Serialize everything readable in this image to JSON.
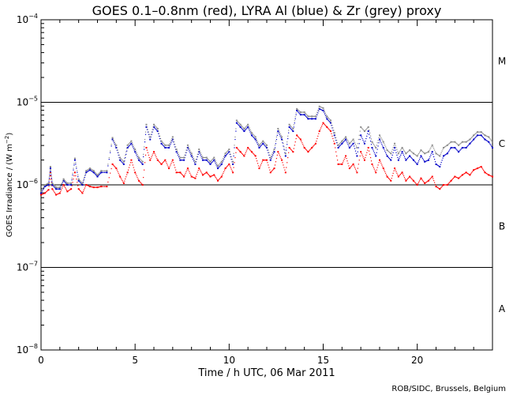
{
  "chart_data": {
    "type": "scatter",
    "title": "GOES 0.1–0.8nm (red), LYRA Al (blue) & Zr (grey) proxy",
    "xlabel": "Time / h UTC, 06 Mar 2011",
    "ylabel": "GOES Irradiance / (W m",
    "ylabel_exp": "−2",
    "ylabel_close": ")",
    "credit": "ROB/SIDC, Brussels, Belgium",
    "xlim": [
      0,
      24
    ],
    "ylim_log10": [
      -8,
      -4
    ],
    "x_ticks": [
      0,
      5,
      10,
      15,
      20
    ],
    "x_tick_labels": [
      "0",
      "5",
      "10",
      "15",
      "20"
    ],
    "y_ticks": [
      {
        "base": "10",
        "exp": "−8",
        "value": -8
      },
      {
        "base": "10",
        "exp": "−7",
        "value": -7
      },
      {
        "base": "10",
        "exp": "−6",
        "value": -6
      },
      {
        "base": "10",
        "exp": "−5",
        "value": -5
      },
      {
        "base": "10",
        "exp": "−4",
        "value": -4
      }
    ],
    "reference_lines_log10": [
      -7,
      -6,
      -5
    ],
    "flare_classes": [
      {
        "label": "A",
        "log10": -7.5
      },
      {
        "label": "B",
        "log10": -6.5
      },
      {
        "label": "C",
        "log10": -5.5
      },
      {
        "label": "M",
        "log10": -4.5
      }
    ],
    "colors": {
      "red": "#ff0000",
      "blue": "#0000c8",
      "grey": "#8c8c8c"
    },
    "series": [
      {
        "name": "GOES 0.1-0.8nm",
        "color": "red",
        "x": [
          0.0,
          0.2,
          0.4,
          0.5,
          0.6,
          0.8,
          1.0,
          1.2,
          1.4,
          1.6,
          1.8,
          2.0,
          2.2,
          2.4,
          2.6,
          2.8,
          3.0,
          3.2,
          3.5,
          3.8,
          4.0,
          4.2,
          4.4,
          4.6,
          4.8,
          5.0,
          5.2,
          5.4,
          5.6,
          5.8,
          6.0,
          6.2,
          6.4,
          6.6,
          6.8,
          7.0,
          7.2,
          7.4,
          7.6,
          7.8,
          8.0,
          8.2,
          8.4,
          8.6,
          8.8,
          9.0,
          9.2,
          9.4,
          9.6,
          9.8,
          10.0,
          10.2,
          10.4,
          10.6,
          10.8,
          11.0,
          11.2,
          11.4,
          11.6,
          11.8,
          12.0,
          12.2,
          12.4,
          12.6,
          12.8,
          13.0,
          13.2,
          13.4,
          13.6,
          13.8,
          14.0,
          14.2,
          14.4,
          14.6,
          14.8,
          15.0,
          15.2,
          15.4,
          15.6,
          15.8,
          16.0,
          16.2,
          16.4,
          16.6,
          16.8,
          17.0,
          17.2,
          17.4,
          17.6,
          17.8,
          18.0,
          18.2,
          18.4,
          18.6,
          18.8,
          19.0,
          19.2,
          19.4,
          19.6,
          19.8,
          20.0,
          20.2,
          20.4,
          20.6,
          20.8,
          21.0,
          21.2,
          21.4,
          21.6,
          21.8,
          22.0,
          22.2,
          22.4,
          22.6,
          22.8,
          23.0,
          23.2,
          23.4,
          23.6,
          23.8,
          24.0
        ],
        "y": [
          -6.12,
          -6.1,
          -6.06,
          -5.85,
          -6.05,
          -6.12,
          -6.1,
          -6.0,
          -6.08,
          -6.05,
          -5.85,
          -6.05,
          -6.1,
          -6.0,
          -6.02,
          -6.03,
          -6.03,
          -6.02,
          -6.02,
          -5.75,
          -5.8,
          -5.9,
          -5.98,
          -5.85,
          -5.7,
          -5.85,
          -5.95,
          -6.0,
          -5.55,
          -5.7,
          -5.6,
          -5.7,
          -5.75,
          -5.7,
          -5.8,
          -5.7,
          -5.85,
          -5.85,
          -5.9,
          -5.8,
          -5.9,
          -5.92,
          -5.8,
          -5.88,
          -5.85,
          -5.9,
          -5.88,
          -5.95,
          -5.9,
          -5.8,
          -5.75,
          -5.85,
          -5.55,
          -5.6,
          -5.65,
          -5.55,
          -5.6,
          -5.65,
          -5.8,
          -5.7,
          -5.7,
          -5.85,
          -5.8,
          -5.6,
          -5.7,
          -5.85,
          -5.55,
          -5.6,
          -5.4,
          -5.45,
          -5.55,
          -5.6,
          -5.55,
          -5.5,
          -5.35,
          -5.25,
          -5.3,
          -5.35,
          -5.5,
          -5.75,
          -5.75,
          -5.65,
          -5.8,
          -5.75,
          -5.85,
          -5.6,
          -5.7,
          -5.55,
          -5.75,
          -5.85,
          -5.7,
          -5.8,
          -5.9,
          -5.95,
          -5.8,
          -5.9,
          -5.85,
          -5.95,
          -5.9,
          -5.95,
          -6.0,
          -5.92,
          -5.98,
          -5.95,
          -5.9,
          -6.02,
          -6.05,
          -6.0,
          -6.0,
          -5.95,
          -5.9,
          -5.92,
          -5.88,
          -5.85,
          -5.88,
          -5.82,
          -5.8,
          -5.78,
          -5.85,
          -5.88,
          -5.9
        ]
      },
      {
        "name": "LYRA Al proxy",
        "color": "blue",
        "x": [
          0.0,
          0.2,
          0.4,
          0.5,
          0.6,
          0.8,
          1.0,
          1.2,
          1.4,
          1.6,
          1.8,
          2.0,
          2.2,
          2.4,
          2.6,
          2.8,
          3.0,
          3.2,
          3.5,
          3.8,
          4.0,
          4.2,
          4.4,
          4.6,
          4.8,
          5.0,
          5.2,
          5.4,
          5.6,
          5.8,
          6.0,
          6.2,
          6.4,
          6.6,
          6.8,
          7.0,
          7.2,
          7.4,
          7.6,
          7.8,
          8.0,
          8.2,
          8.4,
          8.6,
          8.8,
          9.0,
          9.2,
          9.4,
          9.6,
          9.8,
          10.0,
          10.2,
          10.4,
          10.6,
          10.8,
          11.0,
          11.2,
          11.4,
          11.6,
          11.8,
          12.0,
          12.2,
          12.4,
          12.6,
          12.8,
          13.0,
          13.2,
          13.4,
          13.6,
          13.8,
          14.0,
          14.2,
          14.4,
          14.6,
          14.8,
          15.0,
          15.2,
          15.4,
          15.6,
          15.8,
          16.0,
          16.2,
          16.4,
          16.6,
          16.8,
          17.0,
          17.2,
          17.4,
          17.6,
          17.8,
          18.0,
          18.2,
          18.4,
          18.6,
          18.8,
          19.0,
          19.2,
          19.4,
          19.6,
          19.8,
          20.0,
          20.2,
          20.4,
          20.6,
          20.8,
          21.0,
          21.2,
          21.4,
          21.6,
          21.8,
          22.0,
          22.2,
          22.4,
          22.6,
          22.8,
          23.0,
          23.2,
          23.4,
          23.6,
          23.8,
          24.0
        ],
        "y": [
          -6.1,
          -6.02,
          -6.0,
          -5.8,
          -6.0,
          -6.05,
          -6.05,
          -5.95,
          -6.0,
          -6.0,
          -5.7,
          -5.95,
          -6.0,
          -5.85,
          -5.82,
          -5.85,
          -5.9,
          -5.85,
          -5.85,
          -5.45,
          -5.55,
          -5.7,
          -5.75,
          -5.55,
          -5.5,
          -5.6,
          -5.7,
          -5.75,
          -5.3,
          -5.45,
          -5.3,
          -5.35,
          -5.5,
          -5.55,
          -5.55,
          -5.45,
          -5.6,
          -5.7,
          -5.7,
          -5.55,
          -5.65,
          -5.75,
          -5.6,
          -5.7,
          -5.7,
          -5.75,
          -5.7,
          -5.8,
          -5.75,
          -5.65,
          -5.6,
          -5.75,
          -5.25,
          -5.3,
          -5.35,
          -5.3,
          -5.4,
          -5.45,
          -5.55,
          -5.5,
          -5.55,
          -5.7,
          -5.6,
          -5.35,
          -5.45,
          -5.65,
          -5.3,
          -5.35,
          -5.1,
          -5.15,
          -5.15,
          -5.2,
          -5.2,
          -5.2,
          -5.08,
          -5.1,
          -5.2,
          -5.25,
          -5.4,
          -5.55,
          -5.5,
          -5.45,
          -5.55,
          -5.5,
          -5.65,
          -5.4,
          -5.5,
          -5.35,
          -5.55,
          -5.65,
          -5.45,
          -5.55,
          -5.65,
          -5.7,
          -5.55,
          -5.7,
          -5.6,
          -5.7,
          -5.65,
          -5.7,
          -5.75,
          -5.65,
          -5.72,
          -5.7,
          -5.6,
          -5.75,
          -5.78,
          -5.65,
          -5.62,
          -5.55,
          -5.55,
          -5.6,
          -5.55,
          -5.55,
          -5.5,
          -5.45,
          -5.4,
          -5.4,
          -5.45,
          -5.48,
          -5.55
        ]
      },
      {
        "name": "LYRA Zr proxy",
        "color": "grey",
        "x": [
          0.0,
          0.2,
          0.4,
          0.5,
          0.6,
          0.8,
          1.0,
          1.2,
          1.4,
          1.6,
          1.8,
          2.0,
          2.2,
          2.4,
          2.6,
          2.8,
          3.0,
          3.2,
          3.5,
          3.8,
          4.0,
          4.2,
          4.4,
          4.6,
          4.8,
          5.0,
          5.2,
          5.4,
          5.6,
          5.8,
          6.0,
          6.2,
          6.4,
          6.6,
          6.8,
          7.0,
          7.2,
          7.4,
          7.6,
          7.8,
          8.0,
          8.2,
          8.4,
          8.6,
          8.8,
          9.0,
          9.2,
          9.4,
          9.6,
          9.8,
          10.0,
          10.2,
          10.4,
          10.6,
          10.8,
          11.0,
          11.2,
          11.4,
          11.6,
          11.8,
          12.0,
          12.2,
          12.4,
          12.6,
          12.8,
          13.0,
          13.2,
          13.4,
          13.6,
          13.8,
          14.0,
          14.2,
          14.4,
          14.6,
          14.8,
          15.0,
          15.2,
          15.4,
          15.6,
          15.8,
          16.0,
          16.2,
          16.4,
          16.6,
          16.8,
          17.0,
          17.2,
          17.4,
          17.6,
          17.8,
          18.0,
          18.2,
          18.4,
          18.6,
          18.8,
          19.0,
          19.2,
          19.4,
          19.6,
          19.8,
          20.0,
          20.2,
          20.4,
          20.6,
          20.8,
          21.0,
          21.2,
          21.4,
          21.6,
          21.8,
          22.0,
          22.2,
          22.4,
          22.6,
          22.8,
          23.0,
          23.2,
          23.4,
          23.6,
          23.8,
          24.0
        ],
        "y": [
          -6.08,
          -6.0,
          -5.98,
          -5.78,
          -5.98,
          -6.03,
          -6.03,
          -5.93,
          -5.98,
          -5.98,
          -5.68,
          -5.93,
          -5.98,
          -5.83,
          -5.8,
          -5.83,
          -5.88,
          -5.83,
          -5.83,
          -5.43,
          -5.52,
          -5.67,
          -5.72,
          -5.52,
          -5.47,
          -5.57,
          -5.67,
          -5.72,
          -5.27,
          -5.42,
          -5.27,
          -5.32,
          -5.47,
          -5.52,
          -5.52,
          -5.42,
          -5.57,
          -5.67,
          -5.67,
          -5.52,
          -5.62,
          -5.72,
          -5.57,
          -5.67,
          -5.67,
          -5.72,
          -5.67,
          -5.77,
          -5.72,
          -5.62,
          -5.57,
          -5.72,
          -5.22,
          -5.27,
          -5.32,
          -5.27,
          -5.37,
          -5.42,
          -5.52,
          -5.47,
          -5.52,
          -5.67,
          -5.57,
          -5.32,
          -5.42,
          -5.62,
          -5.27,
          -5.32,
          -5.08,
          -5.12,
          -5.12,
          -5.17,
          -5.17,
          -5.17,
          -5.05,
          -5.07,
          -5.17,
          -5.22,
          -5.37,
          -5.52,
          -5.47,
          -5.42,
          -5.5,
          -5.45,
          -5.55,
          -5.3,
          -5.35,
          -5.3,
          -5.48,
          -5.55,
          -5.4,
          -5.48,
          -5.58,
          -5.62,
          -5.5,
          -5.62,
          -5.55,
          -5.62,
          -5.58,
          -5.62,
          -5.65,
          -5.58,
          -5.62,
          -5.6,
          -5.52,
          -5.62,
          -5.65,
          -5.55,
          -5.52,
          -5.48,
          -5.48,
          -5.52,
          -5.48,
          -5.48,
          -5.45,
          -5.4,
          -5.36,
          -5.36,
          -5.4,
          -5.42,
          -5.48
        ]
      }
    ]
  }
}
